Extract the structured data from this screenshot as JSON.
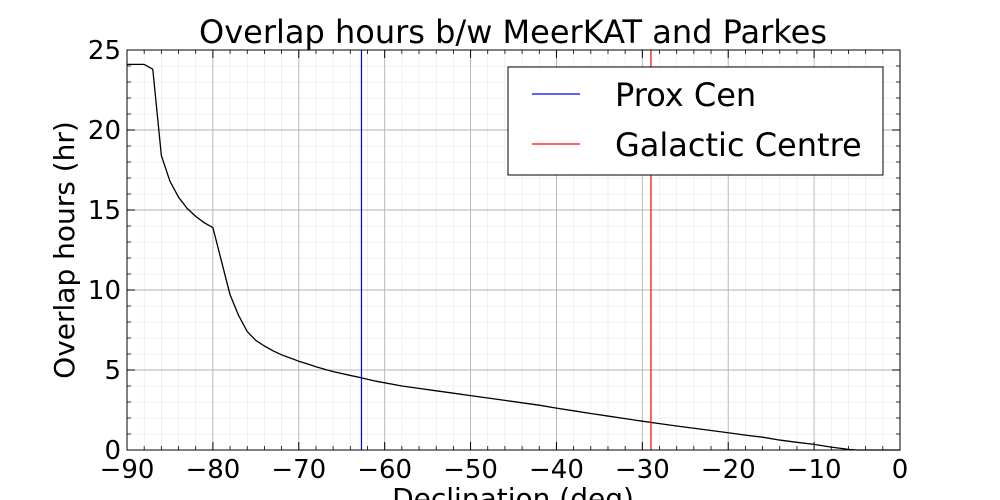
{
  "chart_data": {
    "type": "line",
    "title": "Overlap hours b/w MeerKAT and Parkes",
    "xlabel": "Declination (deg)",
    "ylabel": "Overlap hours (hr)",
    "xlim": [
      -90,
      0
    ],
    "ylim": [
      0,
      25
    ],
    "x_ticks": [
      -90,
      -80,
      -70,
      -60,
      -50,
      -40,
      -30,
      -20,
      -10,
      0
    ],
    "x_tick_labels": [
      "−90",
      "−80",
      "−70",
      "−60",
      "−50",
      "−40",
      "−30",
      "−20",
      "−10",
      "0"
    ],
    "y_ticks": [
      0,
      5,
      10,
      15,
      20,
      25
    ],
    "y_tick_labels": [
      "0",
      "5",
      "10",
      "15",
      "20",
      "25"
    ],
    "grid": true,
    "minor_grid": true,
    "legend_position": "top-right",
    "series": [
      {
        "color": "#000000",
        "x": [
          -90,
          -88,
          -87,
          -86,
          -85,
          -84,
          -83,
          -82,
          -81,
          -80,
          -79,
          -78,
          -77,
          -76,
          -75,
          -74,
          -73,
          -72,
          -71,
          -70,
          -69,
          -68,
          -67,
          -66,
          -65,
          -64,
          -63,
          -62,
          -61,
          -60,
          -59,
          -58,
          -56,
          -54,
          -52,
          -50,
          -48,
          -46,
          -44,
          -42,
          -40,
          -38,
          -36,
          -34,
          -32,
          -30,
          -28,
          -26,
          -24,
          -22,
          -20,
          -18,
          -16,
          -14,
          -12,
          -10,
          -8,
          -6,
          -5,
          -4,
          -3,
          -2,
          -1,
          0
        ],
        "y": [
          24.1,
          24.1,
          23.8,
          18.4,
          16.8,
          15.8,
          15.1,
          14.6,
          14.2,
          13.9,
          11.8,
          9.7,
          8.4,
          7.4,
          6.85,
          6.5,
          6.2,
          5.95,
          5.75,
          5.55,
          5.38,
          5.2,
          5.05,
          4.9,
          4.78,
          4.66,
          4.55,
          4.42,
          4.3,
          4.2,
          4.1,
          4.0,
          3.85,
          3.7,
          3.55,
          3.4,
          3.25,
          3.1,
          2.95,
          2.8,
          2.62,
          2.45,
          2.28,
          2.12,
          1.96,
          1.8,
          1.65,
          1.5,
          1.36,
          1.22,
          1.08,
          0.93,
          0.8,
          0.62,
          0.48,
          0.35,
          0.18,
          0.04,
          0.0,
          0.0,
          0.0,
          0.0,
          0.0,
          0.0
        ]
      }
    ],
    "reference_lines": [
      {
        "name": "Prox Cen",
        "x": -62.7,
        "color": "#0000ff"
      },
      {
        "name": "Galactic Centre",
        "x": -29.0,
        "color": "#ff0000"
      }
    ]
  }
}
